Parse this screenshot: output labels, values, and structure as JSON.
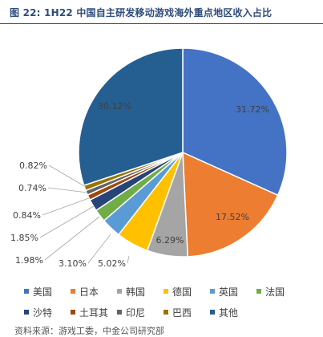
{
  "title": "图 22: 1H22 中国自主研发移动游戏海外重点地区收入占比",
  "source_partial": "资料来源：游戏工委，中金公司研究部",
  "chart_data": {
    "type": "pie",
    "categories": [
      "美国",
      "日本",
      "韩国",
      "德国",
      "英国",
      "法国",
      "沙特",
      "土耳其",
      "印尼",
      "巴西",
      "其他"
    ],
    "values": [
      31.72,
      17.52,
      6.29,
      5.02,
      3.1,
      1.98,
      1.85,
      0.84,
      0.74,
      0.82,
      30.12
    ],
    "labels": [
      "31.72%",
      "17.52%",
      "6.29%",
      "5.02%",
      "3.10%",
      "1.98%",
      "1.85%",
      "0.84%",
      "0.74%",
      "0.82%",
      "30.12%"
    ],
    "colors": [
      "#4472c4",
      "#ed7d31",
      "#a5a5a5",
      "#ffc000",
      "#5b9bd5",
      "#70ad47",
      "#264478",
      "#9e480e",
      "#636363",
      "#997300",
      "#255e91"
    ],
    "start_angle": 0,
    "direction": "clockwise",
    "legend_position": "bottom"
  }
}
